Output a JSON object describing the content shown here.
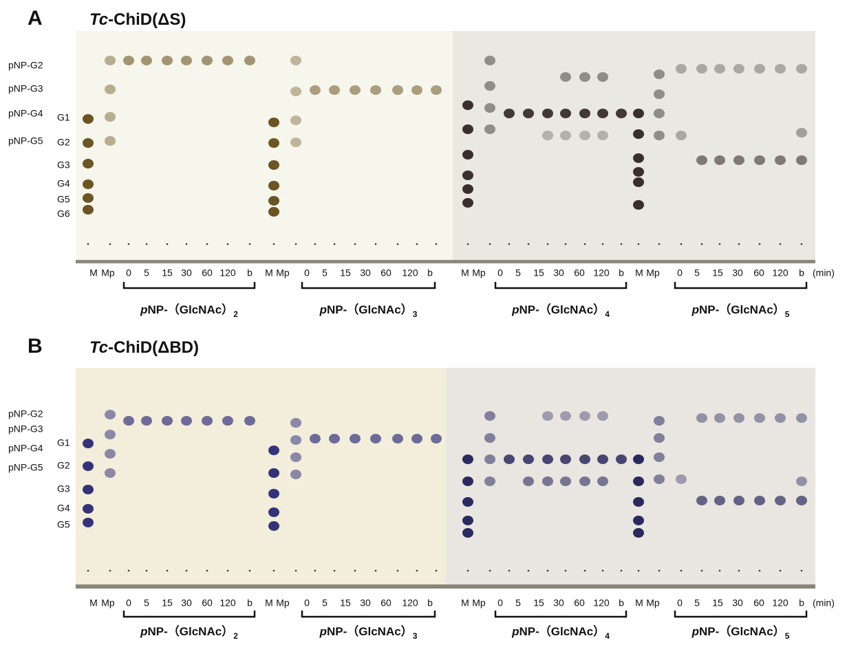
{
  "panels": [
    {
      "letter": "A",
      "title": {
        "italic": "Tc",
        "rest": "-ChiD(ΔS)"
      },
      "left_labels": [
        "pNP-G2",
        "pNP-G3",
        "pNP-G4",
        "pNP-G5"
      ],
      "marker_labels": [
        "G1",
        "G2",
        "G3",
        "G4",
        "G5",
        "G6"
      ],
      "lanes": [
        "M",
        "Mp",
        "0",
        "5",
        "15",
        "30",
        "60",
        "120",
        "b",
        "M",
        "Mp",
        "0",
        "5",
        "15",
        "30",
        "60",
        "120",
        "b",
        "M",
        "Mp",
        "0",
        "5",
        "15",
        "30",
        "60",
        "120",
        "b",
        "M",
        "Mp",
        "0",
        "5",
        "15",
        "30",
        "60",
        "120",
        "b"
      ],
      "unit": "(min)",
      "substrates": [
        {
          "prefix": "p",
          "name": "NP-（GlcNAc）",
          "subscript": "2"
        },
        {
          "prefix": "p",
          "name": "NP-（GlcNAc）",
          "subscript": "3"
        },
        {
          "prefix": "p",
          "name": "NP-（GlcNAc）",
          "subscript": "4"
        },
        {
          "prefix": "p",
          "name": "NP-（GlcNAc）",
          "subscript": "5"
        }
      ]
    },
    {
      "letter": "B",
      "title": {
        "italic": "Tc",
        "rest": "-ChiD(ΔBD)"
      },
      "left_labels": [
        "pNP-G2",
        "pNP-G3",
        "pNP-G4",
        "pNP-G5"
      ],
      "marker_labels": [
        "G1",
        "G2",
        "G3",
        "G4",
        "G5"
      ],
      "lanes": [
        "M",
        "Mp",
        "0",
        "5",
        "15",
        "30",
        "60",
        "120",
        "b",
        "M",
        "Mp",
        "0",
        "5",
        "15",
        "30",
        "60",
        "120",
        "b",
        "M",
        "Mp",
        "0",
        "5",
        "15",
        "30",
        "60",
        "120",
        "b",
        "M",
        "Mp",
        "0",
        "5",
        "15",
        "30",
        "60",
        "120",
        "b"
      ],
      "unit": "(min)",
      "substrates": [
        {
          "prefix": "p",
          "name": "NP-（GlcNAc）",
          "subscript": "2"
        },
        {
          "prefix": "p",
          "name": "NP-（GlcNAc）",
          "subscript": "3"
        },
        {
          "prefix": "p",
          "name": "NP-（GlcNAc）",
          "subscript": "4"
        },
        {
          "prefix": "p",
          "name": "NP-（GlcNAc）",
          "subscript": "5"
        }
      ]
    }
  ]
}
